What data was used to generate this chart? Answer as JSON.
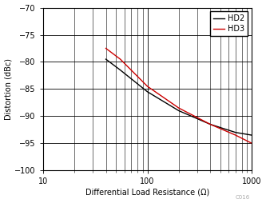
{
  "xlabel": "Differential Load Resistance (Ω)",
  "ylabel": "Distortion (dBc)",
  "xlim": [
    10,
    1000
  ],
  "ylim": [
    -100,
    -70
  ],
  "yticks": [
    -100,
    -95,
    -90,
    -85,
    -80,
    -75,
    -70
  ],
  "xticks": [
    10,
    100,
    1000
  ],
  "hd2_x": [
    40,
    55,
    100,
    200,
    400,
    700,
    1000
  ],
  "hd2_y": [
    -79.5,
    -81.5,
    -85.5,
    -89.0,
    -91.5,
    -93.0,
    -93.5
  ],
  "hd3_x": [
    40,
    55,
    100,
    200,
    400,
    700,
    1000
  ],
  "hd3_y": [
    -77.5,
    -79.5,
    -84.5,
    -88.5,
    -91.5,
    -93.5,
    -95.0
  ],
  "hd2_color": "#000000",
  "hd3_color": "#cc0000",
  "legend_labels": [
    "HD2",
    "HD3"
  ],
  "background_color": "#ffffff",
  "grid_color": "#000000",
  "watermark": "C016",
  "fontsize_axis_label": 7,
  "fontsize_tick": 7,
  "fontsize_legend": 7
}
